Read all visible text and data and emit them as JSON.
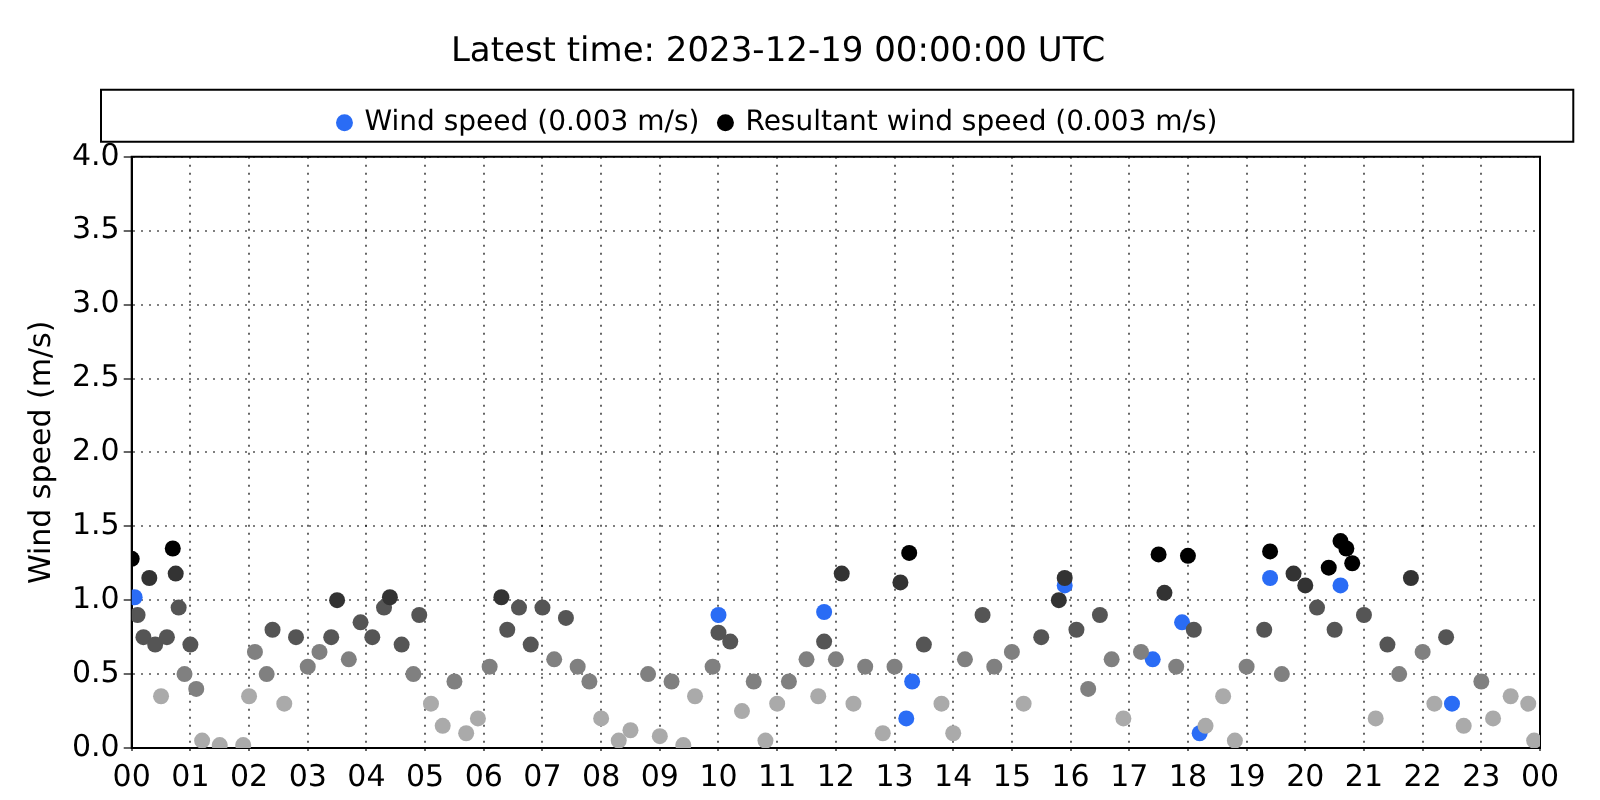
{
  "chart_data": {
    "type": "scatter",
    "title": "Latest time: 2023-12-19 00:00:00 UTC",
    "ylabel": "Wind speed (m/s)",
    "xlim": [
      0,
      24
    ],
    "xticks": [
      {
        "value": 0,
        "label": "00"
      },
      {
        "value": 1,
        "label": "01"
      },
      {
        "value": 2,
        "label": "02"
      },
      {
        "value": 3,
        "label": "03"
      },
      {
        "value": 4,
        "label": "04"
      },
      {
        "value": 5,
        "label": "05"
      },
      {
        "value": 6,
        "label": "06"
      },
      {
        "value": 7,
        "label": "07"
      },
      {
        "value": 8,
        "label": "08"
      },
      {
        "value": 9,
        "label": "09"
      },
      {
        "value": 10,
        "label": "10"
      },
      {
        "value": 11,
        "label": "11"
      },
      {
        "value": 12,
        "label": "12"
      },
      {
        "value": 13,
        "label": "13"
      },
      {
        "value": 14,
        "label": "14"
      },
      {
        "value": 15,
        "label": "15"
      },
      {
        "value": 16,
        "label": "16"
      },
      {
        "value": 17,
        "label": "17"
      },
      {
        "value": 18,
        "label": "18"
      },
      {
        "value": 19,
        "label": "19"
      },
      {
        "value": 20,
        "label": "20"
      },
      {
        "value": 21,
        "label": "21"
      },
      {
        "value": 22,
        "label": "22"
      },
      {
        "value": 23,
        "label": "23"
      },
      {
        "value": 24,
        "label": "00"
      }
    ],
    "ylim": [
      0,
      4
    ],
    "yticks": [
      {
        "value": 0,
        "label": "0.0"
      },
      {
        "value": 0.5,
        "label": "0.5"
      },
      {
        "value": 1,
        "label": "1.0"
      },
      {
        "value": 1.5,
        "label": "1.5"
      },
      {
        "value": 2,
        "label": "2.0"
      },
      {
        "value": 2.5,
        "label": "2.5"
      },
      {
        "value": 3,
        "label": "3.0"
      },
      {
        "value": 3.5,
        "label": "3.5"
      },
      {
        "value": 4,
        "label": "4.0"
      }
    ],
    "grid": true,
    "legend": "top",
    "marker": "circle",
    "series": [
      {
        "name": "Wind speed (0.003 m/s)",
        "color": "#2a6cf5",
        "x": [
          0.05,
          10.0,
          11.8,
          13.3,
          15.9,
          17.4,
          17.9,
          19.4,
          20.6,
          22.5,
          13.2,
          18.2
        ],
        "values": [
          1.02,
          0.9,
          0.92,
          0.45,
          1.1,
          0.6,
          0.85,
          1.15,
          1.1,
          0.3,
          0.2,
          0.1
        ]
      },
      {
        "name": "Resultant wind speed (0.003 m/s)",
        "color": "#000000",
        "x": [
          0.0,
          0.1,
          0.2,
          0.3,
          0.4,
          0.5,
          0.6,
          0.7,
          0.75,
          0.8,
          0.9,
          1.0,
          1.1,
          1.2,
          1.5,
          1.9,
          2.0,
          2.1,
          2.3,
          2.4,
          2.6,
          2.8,
          3.0,
          3.2,
          3.4,
          3.5,
          3.7,
          3.9,
          4.1,
          4.3,
          4.4,
          4.6,
          4.8,
          4.9,
          5.1,
          5.3,
          5.5,
          5.7,
          5.9,
          6.1,
          6.3,
          6.4,
          6.6,
          6.8,
          7.0,
          7.2,
          7.4,
          7.6,
          7.8,
          8.0,
          8.3,
          8.5,
          8.8,
          9.0,
          9.2,
          9.4,
          9.6,
          9.9,
          10.0,
          10.2,
          10.4,
          10.6,
          10.8,
          11.0,
          11.2,
          11.5,
          11.7,
          11.8,
          12.0,
          12.1,
          12.3,
          12.5,
          12.8,
          13.0,
          13.1,
          13.25,
          13.5,
          13.8,
          14.0,
          14.2,
          14.5,
          14.7,
          15.0,
          15.2,
          15.5,
          15.8,
          15.9,
          16.1,
          16.3,
          16.5,
          16.7,
          16.9,
          17.2,
          17.5,
          17.6,
          17.8,
          18.0,
          18.1,
          18.3,
          18.6,
          18.8,
          19.0,
          19.3,
          19.4,
          19.6,
          19.8,
          20.0,
          20.2,
          20.4,
          20.5,
          20.6,
          20.7,
          20.8,
          21.0,
          21.2,
          21.4,
          21.6,
          21.8,
          22.0,
          22.2,
          22.4,
          22.7,
          23.0,
          23.2,
          23.5,
          23.8,
          23.9
        ],
        "values": [
          1.28,
          0.9,
          0.75,
          1.15,
          0.7,
          0.35,
          0.75,
          1.35,
          1.18,
          0.95,
          0.5,
          0.7,
          0.4,
          0.05,
          0.02,
          0.02,
          0.35,
          0.65,
          0.5,
          0.8,
          0.3,
          0.75,
          0.55,
          0.65,
          0.75,
          1.0,
          0.6,
          0.85,
          0.75,
          0.95,
          1.02,
          0.7,
          0.5,
          0.9,
          0.3,
          0.15,
          0.45,
          0.1,
          0.2,
          0.55,
          1.02,
          0.8,
          0.95,
          0.7,
          0.95,
          0.6,
          0.88,
          0.55,
          0.45,
          0.2,
          0.05,
          0.12,
          0.5,
          0.08,
          0.45,
          0.02,
          0.35,
          0.55,
          0.78,
          0.72,
          0.25,
          0.45,
          0.05,
          0.3,
          0.45,
          0.6,
          0.35,
          0.72,
          0.6,
          1.18,
          0.3,
          0.55,
          0.1,
          0.55,
          1.12,
          1.32,
          0.7,
          0.3,
          0.1,
          0.6,
          0.9,
          0.55,
          0.65,
          0.3,
          0.75,
          1.0,
          1.15,
          0.8,
          0.4,
          0.9,
          0.6,
          0.2,
          0.65,
          1.31,
          1.05,
          0.55,
          1.3,
          0.8,
          0.15,
          0.35,
          0.05,
          0.55,
          0.8,
          1.33,
          0.5,
          1.18,
          1.1,
          0.95,
          1.22,
          0.8,
          1.4,
          1.35,
          1.25,
          0.9,
          0.2,
          0.7,
          0.5,
          1.15,
          0.65,
          0.3,
          0.75,
          0.15,
          0.45,
          0.2,
          0.35,
          0.3,
          0.05
        ],
        "colors": [
          "#000000",
          "#555555",
          "#555555",
          "#333333",
          "#555555",
          "#aaaaaa",
          "#555555",
          "#000000",
          "#333333",
          "#555555",
          "#808080",
          "#555555",
          "#808080",
          "#aaaaaa",
          "#aaaaaa",
          "#aaaaaa",
          "#aaaaaa",
          "#808080",
          "#808080",
          "#555555",
          "#aaaaaa",
          "#555555",
          "#808080",
          "#808080",
          "#555555",
          "#333333",
          "#808080",
          "#555555",
          "#555555",
          "#555555",
          "#333333",
          "#555555",
          "#808080",
          "#555555",
          "#aaaaaa",
          "#aaaaaa",
          "#808080",
          "#aaaaaa",
          "#aaaaaa",
          "#808080",
          "#333333",
          "#555555",
          "#555555",
          "#555555",
          "#555555",
          "#808080",
          "#555555",
          "#808080",
          "#808080",
          "#aaaaaa",
          "#aaaaaa",
          "#aaaaaa",
          "#808080",
          "#aaaaaa",
          "#808080",
          "#aaaaaa",
          "#aaaaaa",
          "#808080",
          "#555555",
          "#555555",
          "#aaaaaa",
          "#808080",
          "#aaaaaa",
          "#aaaaaa",
          "#808080",
          "#808080",
          "#aaaaaa",
          "#555555",
          "#808080",
          "#333333",
          "#aaaaaa",
          "#808080",
          "#aaaaaa",
          "#808080",
          "#333333",
          "#000000",
          "#555555",
          "#aaaaaa",
          "#aaaaaa",
          "#808080",
          "#555555",
          "#808080",
          "#808080",
          "#aaaaaa",
          "#555555",
          "#333333",
          "#333333",
          "#555555",
          "#808080",
          "#555555",
          "#808080",
          "#aaaaaa",
          "#808080",
          "#000000",
          "#333333",
          "#808080",
          "#000000",
          "#555555",
          "#aaaaaa",
          "#aaaaaa",
          "#aaaaaa",
          "#808080",
          "#555555",
          "#000000",
          "#808080",
          "#333333",
          "#333333",
          "#555555",
          "#000000",
          "#555555",
          "#000000",
          "#000000",
          "#000000",
          "#555555",
          "#aaaaaa",
          "#555555",
          "#808080",
          "#333333",
          "#808080",
          "#aaaaaa",
          "#555555",
          "#aaaaaa",
          "#808080",
          "#aaaaaa",
          "#aaaaaa",
          "#aaaaaa",
          "#aaaaaa"
        ]
      }
    ]
  }
}
